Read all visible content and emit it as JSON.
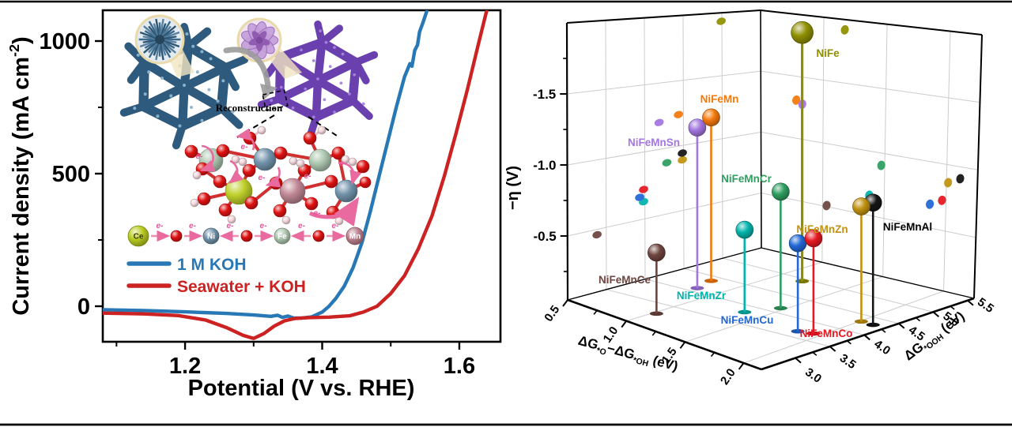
{
  "figure_colors": {
    "background": "#ffffff",
    "frame": "#000000",
    "grid": "#cccccc"
  },
  "chart_data": [
    {
      "type": "line",
      "panel": "left",
      "xlabel": "Potential (V vs. RHE)",
      "ylabel_parts": [
        {
          "t": "Current density (mA cm"
        },
        {
          "t": "-2",
          "sup": true
        },
        {
          "t": ")"
        }
      ],
      "xlim": [
        1.08,
        1.66
      ],
      "ylim": [
        -134,
        1116
      ],
      "x_ticks": [
        1.2,
        1.4,
        1.6
      ],
      "x_minor_ticks": [
        1.1,
        1.3,
        1.5
      ],
      "y_ticks": [
        0,
        500,
        1000
      ],
      "y_minor_ticks": [
        250,
        750
      ],
      "grid": false,
      "legend_position": "inside-left",
      "series": [
        {
          "name": "1 M KOH",
          "color": "#2878b5",
          "points": [
            [
              1.08,
              -13
            ],
            [
              1.14,
              -16
            ],
            [
              1.2,
              -21
            ],
            [
              1.26,
              -27
            ],
            [
              1.3,
              -33
            ],
            [
              1.325,
              -38
            ],
            [
              1.335,
              -34
            ],
            [
              1.342,
              -42
            ],
            [
              1.35,
              -37
            ],
            [
              1.358,
              -44
            ],
            [
              1.37,
              -45
            ],
            [
              1.385,
              -40
            ],
            [
              1.4,
              -22
            ],
            [
              1.41,
              0
            ],
            [
              1.42,
              30
            ],
            [
              1.432,
              75
            ],
            [
              1.445,
              145
            ],
            [
              1.458,
              240
            ],
            [
              1.47,
              355
            ],
            [
              1.482,
              480
            ],
            [
              1.495,
              615
            ],
            [
              1.508,
              750
            ],
            [
              1.52,
              865
            ],
            [
              1.528,
              915
            ],
            [
              1.531,
              905
            ],
            [
              1.535,
              965
            ],
            [
              1.539,
              985
            ],
            [
              1.542,
              1035
            ],
            [
              1.547,
              1070
            ],
            [
              1.553,
              1116
            ]
          ]
        },
        {
          "name": "Seawater + KOH",
          "color": "#cc2222",
          "points": [
            [
              1.08,
              -26
            ],
            [
              1.14,
              -29
            ],
            [
              1.19,
              -35
            ],
            [
              1.23,
              -52
            ],
            [
              1.26,
              -80
            ],
            [
              1.285,
              -110
            ],
            [
              1.3,
              -121
            ],
            [
              1.315,
              -103
            ],
            [
              1.33,
              -75
            ],
            [
              1.345,
              -55
            ],
            [
              1.36,
              -46
            ],
            [
              1.38,
              -43
            ],
            [
              1.41,
              -41
            ],
            [
              1.44,
              -36
            ],
            [
              1.46,
              -22
            ],
            [
              1.48,
              0
            ],
            [
              1.5,
              48
            ],
            [
              1.52,
              115
            ],
            [
              1.54,
              215
            ],
            [
              1.56,
              340
            ],
            [
              1.578,
              490
            ],
            [
              1.595,
              650
            ],
            [
              1.612,
              820
            ],
            [
              1.628,
              990
            ],
            [
              1.64,
              1116
            ]
          ]
        }
      ],
      "inset": {
        "reconstruction_label": "Reconstruction",
        "electron_label": "e-",
        "electron_chain": {
          "atoms": [
            {
              "label": "Ce",
              "color": "#b9cc20",
              "r": 13
            },
            {
              "label": "O",
              "color": "#dd1111",
              "r": 7
            },
            {
              "label": "Ni",
              "color": "#7193ab",
              "r": 10
            },
            {
              "label": "O",
              "color": "#dd1111",
              "r": 7
            },
            {
              "label": "Fe",
              "color": "#aec7b0",
              "r": 10
            },
            {
              "label": "O",
              "color": "#dd1111",
              "r": 7
            },
            {
              "label": "Mn",
              "color": "#bb7f8d",
              "r": 11
            }
          ],
          "arrow_directions": [
            "right",
            "right",
            "left",
            "right",
            "left",
            "right"
          ]
        }
      }
    },
    {
      "type": "scatter",
      "subtype": "3d-stem",
      "panel": "right",
      "zlabel_parts": [
        {
          "t": "−η (V)"
        }
      ],
      "xlabel_parts": [
        {
          "t": "ΔG"
        },
        {
          "t": "*O",
          "sub": true
        },
        {
          "t": "−ΔG"
        },
        {
          "t": "*OH",
          "sub": true
        },
        {
          "t": " (eV)"
        }
      ],
      "ylabel_parts": [
        {
          "t": "ΔG"
        },
        {
          "t": "*OOH",
          "sub": true
        },
        {
          "t": " (eV)"
        }
      ],
      "xlim": [
        0.5,
        2.25
      ],
      "ylim": [
        3.0,
        5.5
      ],
      "zlim": [
        -0.05,
        -2.0
      ],
      "x_ticks": [
        0.5,
        1.0,
        1.5,
        2.0
      ],
      "y_ticks": [
        3.0,
        3.5,
        4.0,
        4.5,
        5.0,
        5.5
      ],
      "z_ticks": [
        -0.5,
        -1.0,
        -1.5
      ],
      "grid": true,
      "points": [
        {
          "name": "NiFe",
          "x": 1.2,
          "y": 4.95,
          "z": -1.8,
          "color": "#8f8f00"
        },
        {
          "name": "NiFeMn",
          "x": 0.8,
          "y": 4.4,
          "z": -1.2,
          "color": "#f4790b"
        },
        {
          "name": "NiFeMnSn",
          "x": 0.85,
          "y": 4.15,
          "z": -1.18,
          "color": "#a376e0"
        },
        {
          "name": "NiFeMnCr",
          "x": 1.5,
          "y": 4.25,
          "z": -0.87,
          "color": "#2f9e60"
        },
        {
          "name": "NiFeMnCe",
          "x": 1.05,
          "y": 3.35,
          "z": -0.48,
          "color": "#6e453f"
        },
        {
          "name": "NiFeMnZr",
          "x": 1.4,
          "y": 3.95,
          "z": -0.63,
          "color": "#00b3ab"
        },
        {
          "name": "NiFeMnCu",
          "x": 1.9,
          "y": 3.9,
          "z": -0.67,
          "color": "#2268d6"
        },
        {
          "name": "NiFeMnCo",
          "x": 2.0,
          "y": 3.95,
          "z": -0.72,
          "color": "#e61822"
        },
        {
          "name": "NiFeMnZn",
          "x": 2.05,
          "y": 4.45,
          "z": -0.86,
          "color": "#c19110"
        },
        {
          "name": "NiFeMnAl",
          "x": 2.15,
          "y": 4.45,
          "z": -0.91,
          "color": "#151515"
        }
      ]
    }
  ]
}
